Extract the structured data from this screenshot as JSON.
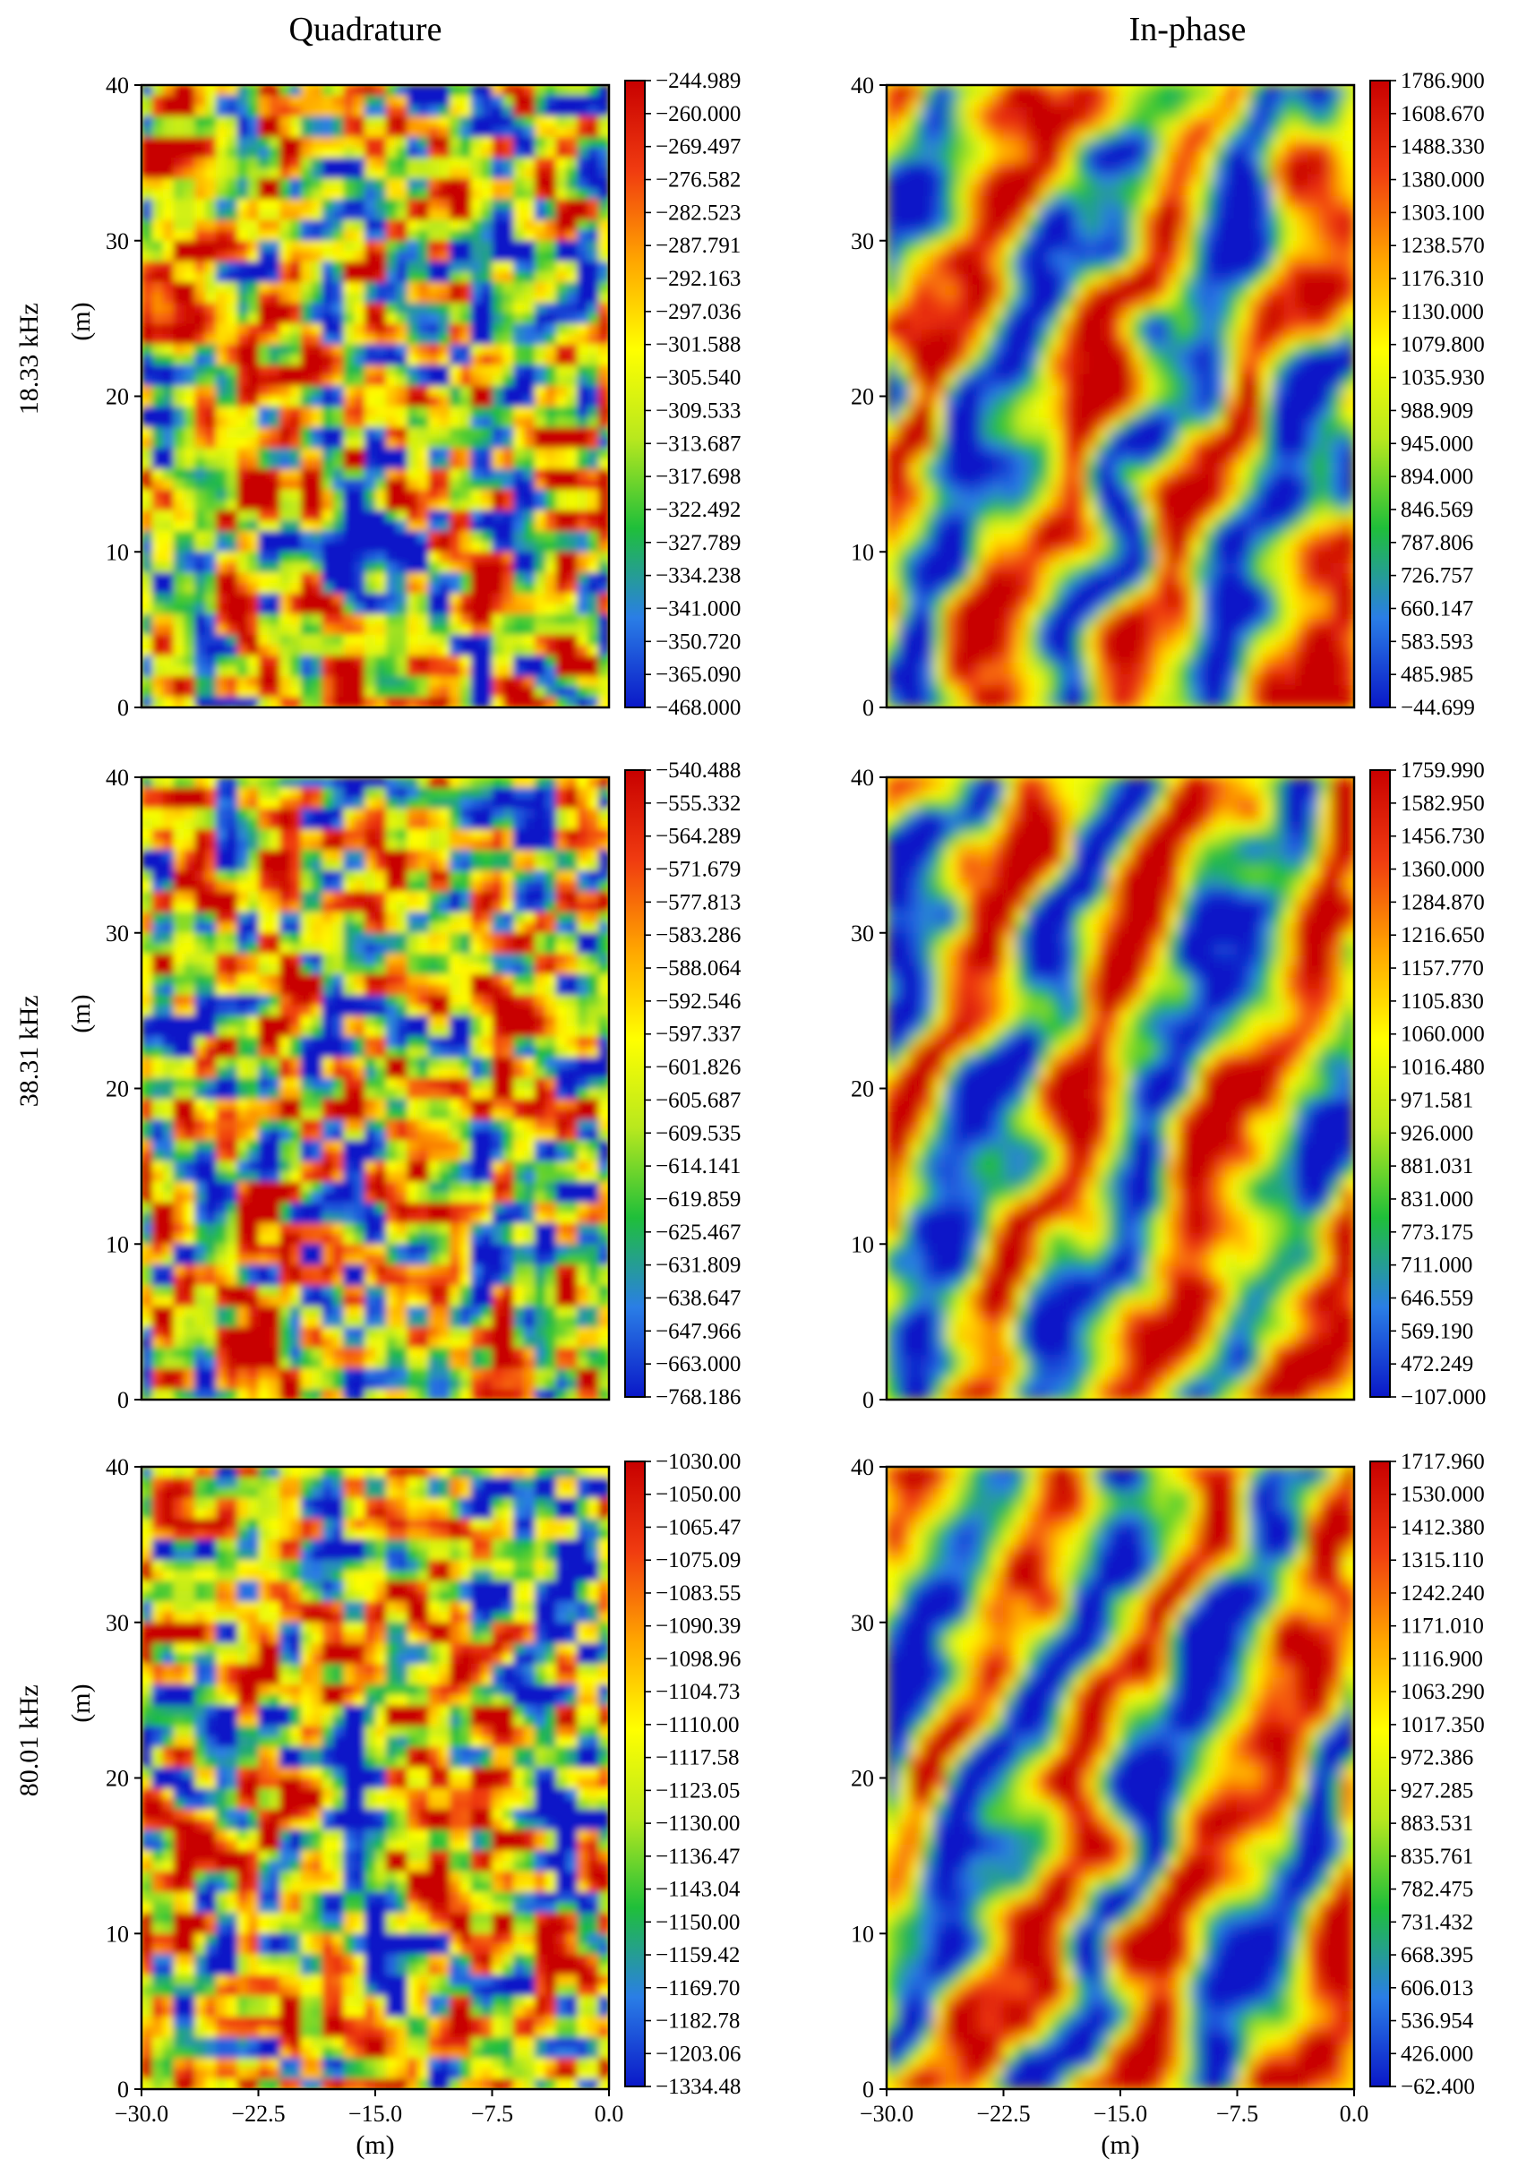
{
  "figure": {
    "column_titles": [
      "Quadrature",
      "In-phase"
    ],
    "row_labels": [
      "18.33 kHz",
      "38.31 kHz",
      "80.01 kHz"
    ],
    "y_axis_unit": "(m)",
    "x_axis_unit": "(m)",
    "colormap": [
      "#0a18c8",
      "#2a7ee6",
      "#1fbf3a",
      "#b8e81e",
      "#ffff00",
      "#ffa500",
      "#f03b10",
      "#c80000"
    ]
  },
  "chart_data": [
    {
      "type": "heatmap",
      "title": "Quadrature",
      "row": 0,
      "col": 0,
      "xlim": [
        -30.0,
        0.0
      ],
      "ylim": [
        0,
        40
      ],
      "xticks": [],
      "yticks": [
        "0",
        "10",
        "20",
        "30",
        "40"
      ],
      "ylabel": "(m)",
      "colorbar_ticks": [
        "-244.989",
        "-260.000",
        "-269.497",
        "-276.582",
        "-282.523",
        "-287.791",
        "-292.163",
        "-297.036",
        "-301.588",
        "-305.540",
        "-309.533",
        "-313.687",
        "-317.698",
        "-322.492",
        "-327.789",
        "-334.238",
        "-341.000",
        "-350.720",
        "-365.090",
        "-468.000"
      ],
      "pattern": "noisy"
    },
    {
      "type": "heatmap",
      "title": "In-phase",
      "row": 0,
      "col": 1,
      "xlim": [
        -30.0,
        0.0
      ],
      "ylim": [
        0,
        40
      ],
      "xticks": [],
      "yticks": [
        "0",
        "10",
        "20",
        "30",
        "40"
      ],
      "ylabel": "",
      "colorbar_ticks": [
        "1786.900",
        "1608.670",
        "1488.330",
        "1380.000",
        "1303.100",
        "1238.570",
        "1176.310",
        "1130.000",
        "1079.800",
        "1035.930",
        "988.909",
        "945.000",
        "894.000",
        "846.569",
        "787.806",
        "726.757",
        "660.147",
        "583.593",
        "485.985",
        "-44.699"
      ],
      "pattern": "stripes"
    },
    {
      "type": "heatmap",
      "title": "",
      "row": 1,
      "col": 0,
      "xlim": [
        -30.0,
        0.0
      ],
      "ylim": [
        0,
        40
      ],
      "xticks": [],
      "yticks": [
        "0",
        "10",
        "20",
        "30",
        "40"
      ],
      "ylabel": "(m)",
      "colorbar_ticks": [
        "-540.488",
        "-555.332",
        "-564.289",
        "-571.679",
        "-577.813",
        "-583.286",
        "-588.064",
        "-592.546",
        "-597.337",
        "-601.826",
        "-605.687",
        "-609.535",
        "-614.141",
        "-619.859",
        "-625.467",
        "-631.809",
        "-638.647",
        "-647.966",
        "-663.000",
        "-768.186"
      ],
      "pattern": "noisy"
    },
    {
      "type": "heatmap",
      "title": "",
      "row": 1,
      "col": 1,
      "xlim": [
        -30.0,
        0.0
      ],
      "ylim": [
        0,
        40
      ],
      "xticks": [],
      "yticks": [
        "0",
        "10",
        "20",
        "30",
        "40"
      ],
      "ylabel": "",
      "colorbar_ticks": [
        "1759.990",
        "1582.950",
        "1456.730",
        "1360.000",
        "1284.870",
        "1216.650",
        "1157.770",
        "1105.830",
        "1060.000",
        "1016.480",
        "971.581",
        "926.000",
        "881.031",
        "831.000",
        "773.175",
        "711.000",
        "646.559",
        "569.190",
        "472.249",
        "-107.000"
      ],
      "pattern": "stripes"
    },
    {
      "type": "heatmap",
      "title": "",
      "row": 2,
      "col": 0,
      "xlim": [
        -30.0,
        0.0
      ],
      "ylim": [
        0,
        40
      ],
      "xticks": [
        "-30.0",
        "-22.5",
        "-15.0",
        "-7.5",
        "0.0"
      ],
      "yticks": [
        "0",
        "10",
        "20",
        "30",
        "40"
      ],
      "ylabel": "(m)",
      "xlabel": "(m)",
      "colorbar_ticks": [
        "-1030.00",
        "-1050.00",
        "-1065.47",
        "-1075.09",
        "-1083.55",
        "-1090.39",
        "-1098.96",
        "-1104.73",
        "-1110.00",
        "-1117.58",
        "-1123.05",
        "-1130.00",
        "-1136.47",
        "-1143.04",
        "-1150.00",
        "-1159.42",
        "-1169.70",
        "-1182.78",
        "-1203.06",
        "-1334.48"
      ],
      "pattern": "noisy"
    },
    {
      "type": "heatmap",
      "title": "",
      "row": 2,
      "col": 1,
      "xlim": [
        -30.0,
        0.0
      ],
      "ylim": [
        0,
        40
      ],
      "xticks": [
        "-30.0",
        "-22.5",
        "-15.0",
        "-7.5",
        "0.0"
      ],
      "yticks": [
        "0",
        "10",
        "20",
        "30",
        "40"
      ],
      "ylabel": "",
      "xlabel": "(m)",
      "colorbar_ticks": [
        "1717.960",
        "1530.000",
        "1412.380",
        "1315.110",
        "1242.240",
        "1171.010",
        "1116.900",
        "1063.290",
        "1017.350",
        "972.386",
        "927.285",
        "883.531",
        "835.761",
        "782.475",
        "731.432",
        "668.395",
        "606.013",
        "536.954",
        "426.000",
        "-62.400"
      ],
      "pattern": "stripes"
    }
  ]
}
